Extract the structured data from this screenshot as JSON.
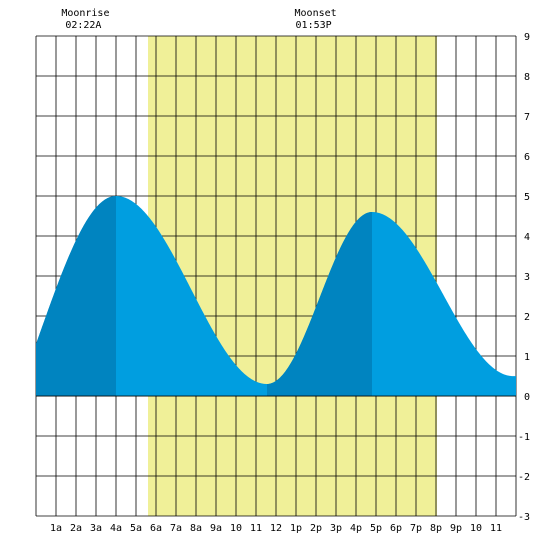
{
  "chart_data": {
    "type": "area",
    "title": "",
    "xlabel": "",
    "ylabel": "",
    "xlim": [
      0,
      24
    ],
    "ylim": [
      -3,
      9
    ],
    "grid": true,
    "x_tick_labels": [
      "1a",
      "2a",
      "3a",
      "4a",
      "5a",
      "6a",
      "7a",
      "8a",
      "9a",
      "10",
      "11",
      "12",
      "1p",
      "2p",
      "3p",
      "4p",
      "5p",
      "6p",
      "7p",
      "8p",
      "9p",
      "10",
      "11"
    ],
    "y_tick_labels": [
      "9",
      "8",
      "7",
      "6",
      "5",
      "4",
      "3",
      "2",
      "1",
      "0",
      "-1",
      "-2",
      "-3"
    ],
    "moonrise": {
      "label": "Moonrise",
      "time": "02:22A",
      "hour": 2.37
    },
    "moonset": {
      "label": "Moonset",
      "time": "01:53P",
      "hour": 13.88
    },
    "daylight": {
      "start_hour": 5.6,
      "end_hour": 20.05
    },
    "tide_extrema": [
      {
        "hour": 4.0,
        "height": 5.0
      },
      {
        "hour": 11.55,
        "height": 0.3
      },
      {
        "hour": 16.8,
        "height": 4.6
      }
    ],
    "tide_series": [
      {
        "x": 0.0,
        "y": 1.3
      },
      {
        "x": 24.0,
        "y": 0.5
      }
    ],
    "colors": {
      "daylight": "#f0f098",
      "tide_fill": "#009ee0",
      "tide_rising": "#0084c0",
      "grid": "#000000",
      "background": "#ffffff"
    }
  }
}
